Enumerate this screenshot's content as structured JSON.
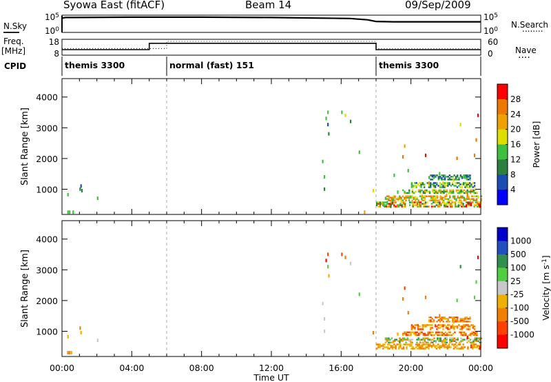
{
  "header": {
    "title": "Syowa East (fitACF)",
    "beam": "Beam 14",
    "date": "09/Sep/2009"
  },
  "left_labels": {
    "nsky": "N.Sky",
    "freq_a": "Freq.",
    "freq_b": "[MHz]",
    "cpid": "CPID"
  },
  "right_labels": {
    "nsearch": "N.Search",
    "nave": "Nave",
    "nave_dots": "....",
    "nsearch_dots": "........"
  },
  "chart_data": [
    {
      "type": "line",
      "panel": "noise",
      "ytick_labels_left": [
        "10^5",
        "10^0"
      ],
      "ytick_labels_right": [
        "10^5",
        "10^0"
      ],
      "series": [
        {
          "name": "N.Sky",
          "x": [
            0,
            0.2,
            0.5,
            4,
            8,
            12,
            15,
            16.5,
            17.5,
            18,
            19,
            22,
            24
          ],
          "values": [
            4.3,
            4.5,
            4.5,
            4.6,
            4.6,
            4.5,
            4.3,
            4.2,
            3.8,
            3.3,
            3.2,
            3.2,
            3.2
          ]
        },
        {
          "name": "N.Search",
          "x": [
            0,
            0.2,
            0.5,
            4,
            8,
            12,
            15,
            16.5,
            17.5,
            18,
            19,
            22,
            24
          ],
          "values": [
            4.2,
            4.4,
            4.4,
            4.5,
            4.5,
            4.4,
            4.2,
            4.1,
            3.7,
            3.2,
            3.1,
            3.1,
            3.1
          ]
        }
      ]
    },
    {
      "type": "line",
      "panel": "frequency",
      "ytick_labels_left": [
        "18",
        "8"
      ],
      "ytick_labels_right": [
        "60",
        "0"
      ],
      "series": [
        {
          "name": "Freq.",
          "x": [
            0,
            5,
            5,
            18,
            18,
            24
          ],
          "values": [
            11.5,
            11.5,
            15.5,
            15.5,
            11.5,
            11.5
          ]
        },
        {
          "name": "Nave",
          "x": [
            0,
            6,
            6,
            18,
            18,
            24
          ],
          "values": [
            25,
            25,
            52,
            52,
            25,
            25
          ]
        }
      ]
    },
    {
      "type": "table",
      "panel": "cpid",
      "segments": [
        {
          "label": "themis 3300",
          "start": 0,
          "end": 6
        },
        {
          "label": "normal (fast) 151",
          "start": 6,
          "end": 18
        },
        {
          "label": "themis 3300",
          "start": 18,
          "end": 24
        }
      ]
    },
    {
      "type": "heatmap",
      "panel": "power",
      "ylabel": "Slant Range [km]",
      "ylim": [
        180,
        4600
      ],
      "yticks": [
        1000,
        2000,
        3000,
        4000
      ],
      "xlim": [
        0,
        24
      ],
      "colorbar": {
        "label": "Power [dB]",
        "ticks": [
          "4",
          "8",
          "12",
          "16",
          "20",
          "24",
          "28"
        ],
        "colors": [
          "#0000ff",
          "#1a4db3",
          "#2b7f3f",
          "#3fbf3f",
          "#dddd00",
          "#f0a000",
          "#ee7700",
          "#ff0000"
        ]
      },
      "points": [
        [
          0.3,
          250,
          3
        ],
        [
          0.4,
          250,
          3
        ],
        [
          0.6,
          250,
          3
        ],
        [
          1.0,
          1000,
          2
        ],
        [
          1.05,
          1100,
          1
        ],
        [
          1.1,
          950,
          2
        ],
        [
          2.0,
          700,
          3
        ],
        [
          0.3,
          820,
          3
        ],
        [
          14.9,
          1900,
          3
        ],
        [
          15.0,
          1400,
          3
        ],
        [
          15.0,
          1000,
          2
        ],
        [
          15.1,
          3300,
          3
        ],
        [
          15.2,
          3500,
          3
        ],
        [
          15.2,
          3100,
          1
        ],
        [
          15.25,
          2800,
          2
        ],
        [
          16.0,
          3500,
          3
        ],
        [
          16.2,
          3400,
          4
        ],
        [
          16.5,
          3200,
          2
        ],
        [
          17.0,
          2200,
          3
        ],
        [
          17.3,
          250,
          5
        ],
        [
          17.8,
          950,
          4
        ],
        [
          18.0,
          500,
          2
        ],
        [
          18.2,
          520,
          2
        ],
        [
          18.4,
          480,
          3
        ],
        [
          18.6,
          560,
          3
        ],
        [
          18.8,
          440,
          2
        ],
        [
          18.9,
          640,
          3
        ],
        [
          19.0,
          1450,
          3
        ],
        [
          19.2,
          900,
          3
        ],
        [
          19.4,
          620,
          4
        ],
        [
          19.5,
          2050,
          6
        ],
        [
          19.6,
          2400,
          5
        ],
        [
          19.8,
          1600,
          3
        ],
        [
          20.0,
          1100,
          3
        ],
        [
          20.2,
          720,
          4
        ],
        [
          20.4,
          500,
          4
        ],
        [
          20.6,
          760,
          5
        ],
        [
          20.8,
          2100,
          7
        ],
        [
          21.0,
          1200,
          5
        ],
        [
          21.2,
          950,
          4
        ],
        [
          21.4,
          700,
          4
        ],
        [
          21.6,
          1500,
          3
        ],
        [
          21.8,
          1200,
          4
        ],
        [
          22.0,
          800,
          5
        ],
        [
          22.2,
          500,
          5
        ],
        [
          22.4,
          1300,
          4
        ],
        [
          22.6,
          2000,
          6
        ],
        [
          22.8,
          3100,
          4
        ],
        [
          23.0,
          1400,
          3
        ],
        [
          23.2,
          800,
          6
        ],
        [
          23.4,
          500,
          7
        ],
        [
          23.6,
          2100,
          6
        ],
        [
          23.7,
          2600,
          6
        ],
        [
          23.8,
          3400,
          7
        ],
        [
          23.9,
          450,
          7
        ]
      ],
      "bands": [
        {
          "x": [
            18.0,
            24.0
          ],
          "y": [
            420,
            560
          ],
          "cmin": 2,
          "cmax": 7
        },
        {
          "x": [
            18.5,
            24.0
          ],
          "y": [
            620,
            760
          ],
          "cmin": 3,
          "cmax": 6
        },
        {
          "x": [
            19.5,
            23.8
          ],
          "y": [
            860,
            980
          ],
          "cmin": 2,
          "cmax": 5
        },
        {
          "x": [
            20.0,
            23.6
          ],
          "y": [
            1050,
            1200
          ],
          "cmin": 1,
          "cmax": 4
        },
        {
          "x": [
            21.0,
            23.4
          ],
          "y": [
            1300,
            1480
          ],
          "cmin": 1,
          "cmax": 3
        }
      ]
    },
    {
      "type": "heatmap",
      "panel": "velocity",
      "ylabel": "Slant Range [km]",
      "xlabel": "Time UT",
      "ylim": [
        180,
        4600
      ],
      "yticks": [
        1000,
        2000,
        3000,
        4000
      ],
      "xlim": [
        0,
        24
      ],
      "xtick_labels": [
        "00:00",
        "04:00",
        "08:00",
        "12:00",
        "16:00",
        "20:00",
        "00:00"
      ],
      "colorbar": {
        "label": "Velocity [m s^-1]",
        "ticks": [
          "1000",
          "500",
          "100",
          "25",
          "-25",
          "-100",
          "-500",
          "-1000"
        ],
        "colors": [
          "#0000cc",
          "#2050c0",
          "#2f8f4f",
          "#4fcf3f",
          "#c8c8c8",
          "#f0b000",
          "#f08000",
          "#ff4000",
          "#ff0000"
        ]
      },
      "points": [
        [
          0.3,
          300,
          6
        ],
        [
          0.4,
          300,
          6
        ],
        [
          0.5,
          300,
          5
        ],
        [
          1.0,
          1100,
          6
        ],
        [
          1.05,
          950,
          5
        ],
        [
          2.0,
          700,
          4
        ],
        [
          0.3,
          820,
          5
        ],
        [
          14.9,
          1900,
          4
        ],
        [
          15.0,
          1400,
          4
        ],
        [
          15.0,
          1000,
          4
        ],
        [
          15.1,
          3300,
          8
        ],
        [
          15.2,
          3500,
          7
        ],
        [
          15.2,
          3100,
          3
        ],
        [
          15.25,
          2800,
          5
        ],
        [
          16.0,
          3500,
          7
        ],
        [
          16.2,
          3400,
          6
        ],
        [
          16.5,
          3200,
          4
        ],
        [
          17.0,
          2200,
          3
        ],
        [
          17.8,
          950,
          6
        ],
        [
          19.2,
          900,
          5
        ],
        [
          19.5,
          2050,
          6
        ],
        [
          19.6,
          2400,
          7
        ],
        [
          19.8,
          1600,
          6
        ],
        [
          20.0,
          1100,
          6
        ],
        [
          20.8,
          2100,
          6
        ],
        [
          21.6,
          1500,
          6
        ],
        [
          22.4,
          1300,
          5
        ],
        [
          22.6,
          2000,
          3
        ],
        [
          22.8,
          3100,
          2
        ],
        [
          23.2,
          800,
          8
        ],
        [
          23.4,
          500,
          7
        ],
        [
          23.6,
          2100,
          3
        ],
        [
          23.7,
          2600,
          3
        ],
        [
          23.8,
          3400,
          8
        ],
        [
          23.9,
          450,
          8
        ]
      ],
      "bands": [
        {
          "x": [
            18.0,
            24.0
          ],
          "y": [
            420,
            560
          ],
          "cmin": 5,
          "cmax": 6
        },
        {
          "x": [
            18.5,
            24.0
          ],
          "y": [
            620,
            760
          ],
          "cmin": 2,
          "cmax": 6
        },
        {
          "x": [
            19.5,
            23.8
          ],
          "y": [
            860,
            980
          ],
          "cmin": 5,
          "cmax": 7
        },
        {
          "x": [
            20.0,
            23.6
          ],
          "y": [
            1050,
            1200
          ],
          "cmin": 5,
          "cmax": 7
        },
        {
          "x": [
            21.0,
            23.4
          ],
          "y": [
            1300,
            1480
          ],
          "cmin": 5,
          "cmax": 7
        }
      ]
    }
  ]
}
